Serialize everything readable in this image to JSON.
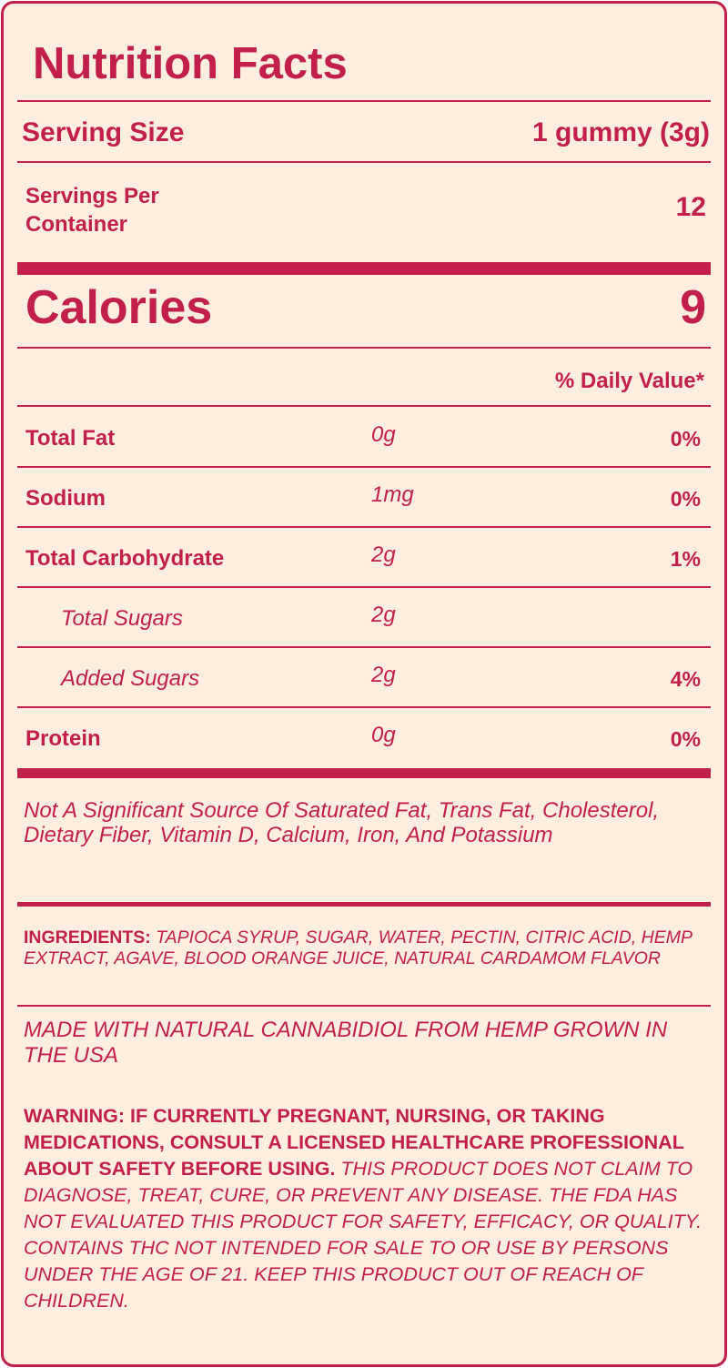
{
  "header": {
    "title": "Nutrition Facts"
  },
  "serving": {
    "size_label": "Serving Size",
    "size_value": "1 gummy (3g)",
    "per_container_label": "Servings Per Container",
    "per_container_value": "12"
  },
  "calories": {
    "label": "Calories",
    "value": "9"
  },
  "daily_value_header": "% Daily Value*",
  "nutrients": [
    {
      "name": "Total Fat",
      "amount": "0g",
      "dv": "0%"
    },
    {
      "name": "Sodium",
      "amount": "1mg",
      "dv": "0%"
    },
    {
      "name": "Total Carbohydrate",
      "amount": "2g",
      "dv": "1%",
      "sub_rows": [
        {
          "name": "Total Sugars",
          "amount": "2g"
        },
        {
          "name": "Added Sugars",
          "amount": "2g",
          "dv": "4%"
        }
      ]
    },
    {
      "name": "Protein",
      "amount": "0g",
      "dv": "0%"
    }
  ],
  "footnote": "Not A Significant Source Of Saturated Fat, Trans Fat, Cholesterol, Dietary Fiber, Vitamin D, Calcium, Iron, And Potassium",
  "ingredients": {
    "label": "INGREDIENTS:",
    "text": "TAPIOCA SYRUP, SUGAR, WATER, PECTIN, CITRIC ACID, HEMP EXTRACT, AGAVE, BLOOD ORANGE JUICE, NATURAL CARDAMOM FLAVOR"
  },
  "origin": "MADE WITH NATURAL CANNABIDIOL FROM HEMP GROWN IN THE USA",
  "warning": {
    "bold": "WARNING: IF CURRENTLY PREGNANT, NURSING, OR TAKING MEDICATIONS, CONSULT A LICENSED HEALTHCARE PROFESSIONAL ABOUT SAFETY BEFORE USING.",
    "text": "THIS PRODUCT DOES NOT CLAIM TO DIAGNOSE, TREAT, CURE, OR PREVENT ANY DISEASE. THE FDA HAS NOT EVALUATED THIS PRODUCT FOR SAFETY, EFFICACY, OR QUALITY. CONTAINS THC NOT INTENDED FOR SALE TO OR USE BY PERSONS UNDER THE AGE OF 21. KEEP THIS PRODUCT OUT OF REACH OF CHILDREN."
  }
}
